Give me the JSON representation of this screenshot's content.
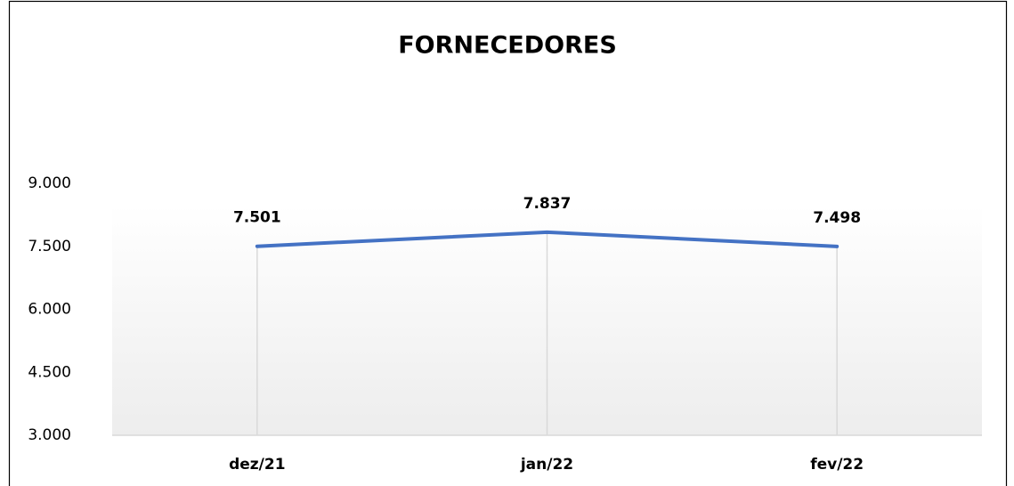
{
  "chart_data": {
    "type": "line",
    "title": "FORNECEDORES",
    "categories": [
      "dez/21",
      "jan/22",
      "fev/22"
    ],
    "series": [
      {
        "name": "Fornecedores",
        "color": "#4472c4",
        "values": [
          7501,
          7837,
          7498
        ],
        "value_labels": [
          "7.501",
          "7.837",
          "7.498"
        ]
      }
    ],
    "ylim": [
      3000,
      9000
    ],
    "yticks": [
      {
        "value": 3000,
        "label": "3.000"
      },
      {
        "value": 4500,
        "label": "4.500"
      },
      {
        "value": 6000,
        "label": "6.000"
      },
      {
        "value": 7500,
        "label": "7.500"
      },
      {
        "value": 9000,
        "label": "9.000"
      }
    ],
    "grid": false
  }
}
